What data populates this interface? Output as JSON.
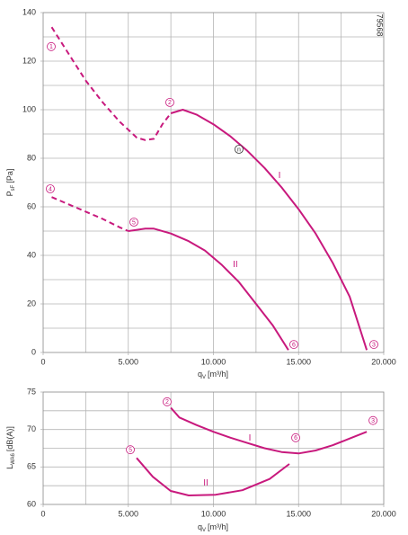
{
  "chart_data": [
    {
      "type": "line",
      "ylabel": {
        "main": "P",
        "sub": "sF",
        "unit": "[Pa]"
      },
      "xlabel": {
        "main": "q",
        "sub": "V",
        "unit": "[m³/h]"
      },
      "code": "79568",
      "xlim": [
        0,
        20000
      ],
      "ylim": [
        0,
        140
      ],
      "xticks": [
        0,
        {
          "value": 5000,
          "label": "5.000"
        },
        {
          "value": 10000,
          "label": "10.000"
        },
        {
          "value": 15000,
          "label": "15.000"
        },
        {
          "value": 20000,
          "label": "20.000"
        }
      ],
      "yticks": [
        0,
        20,
        40,
        60,
        80,
        100,
        120,
        140
      ],
      "xgrid": [
        2500,
        5000,
        7500,
        10000,
        12500,
        15000,
        17500
      ],
      "ygrid": [
        10,
        20,
        30,
        40,
        50,
        60,
        70,
        80,
        90,
        100,
        110,
        120,
        130
      ],
      "series": [
        {
          "color": "#c8197d",
          "dash": true,
          "x": [
            500,
            1500,
            2500,
            3500,
            4500,
            5500,
            6000,
            6500,
            7000,
            7500
          ],
          "values": [
            134,
            123,
            112,
            103,
            95,
            88.5,
            87.5,
            88,
            94,
            98.5
          ]
        },
        {
          "color": "#c8197d",
          "dash": false,
          "x": [
            7500,
            8200,
            9000,
            10000,
            11000,
            12000,
            13000,
            14000,
            15000,
            16000,
            17000,
            18000,
            19000
          ],
          "values": [
            98.5,
            100,
            98,
            94,
            89,
            83,
            76,
            68,
            59,
            49,
            37,
            23,
            1
          ]
        },
        {
          "color": "#c8197d",
          "dash": true,
          "x": [
            500,
            1500,
            2500,
            3500,
            4500,
            5000
          ],
          "values": [
            64,
            61,
            58,
            55,
            51.5,
            50
          ]
        },
        {
          "color": "#c8197d",
          "dash": false,
          "x": [
            5000,
            6000,
            6500,
            7500,
            8500,
            9500,
            10500,
            11500,
            12500,
            13500,
            14400
          ],
          "values": [
            50,
            51,
            51,
            49,
            46,
            42,
            36,
            29,
            20,
            11,
            1
          ]
        }
      ],
      "annotations": [
        {
          "text": "1",
          "circled": true,
          "x": 475,
          "y": 126
        },
        {
          "text": "2",
          "circled": true,
          "x": 7440,
          "y": 103
        },
        {
          "text": "3",
          "circled": true,
          "x": 19420,
          "y": 3.3
        },
        {
          "text": "4",
          "circled": true,
          "x": 420,
          "y": 67.4
        },
        {
          "text": "5",
          "circled": true,
          "x": 5330,
          "y": 53.7
        },
        {
          "text": "6",
          "circled": true,
          "x": 14720,
          "y": 3.3
        },
        {
          "text": "n",
          "circled": true,
          "x": 11500,
          "y": 83.7
        },
        {
          "text": "I",
          "circled": false,
          "x": 13880,
          "y": 73
        },
        {
          "text": "II",
          "circled": false,
          "x": 11290,
          "y": 36.3
        }
      ]
    },
    {
      "type": "line",
      "ylabel": {
        "main": "L",
        "sub": "WA6",
        "unit": "[dB(A)]"
      },
      "xlabel": {
        "main": "q",
        "sub": "V",
        "unit": "[m³/h]"
      },
      "xlim": [
        0,
        20000
      ],
      "ylim": [
        60,
        75
      ],
      "xticks": [
        0,
        {
          "value": 5000,
          "label": "5.000"
        },
        {
          "value": 10000,
          "label": "10.000"
        },
        {
          "value": 15000,
          "label": "15.000"
        },
        {
          "value": 20000,
          "label": "20.000"
        }
      ],
      "yticks": [
        60,
        65,
        70,
        75
      ],
      "xgrid": [
        2500,
        5000,
        7500,
        10000,
        12500,
        15000,
        17500
      ],
      "ygrid": [
        62.5,
        65,
        67.5,
        70,
        72.5
      ],
      "series": [
        {
          "color": "#c8197d",
          "dash": false,
          "x": [
            7500,
            8000,
            9000,
            10000,
            11000,
            12000,
            13000,
            14000,
            15000,
            16000,
            17000,
            18000,
            19000
          ],
          "values": [
            72.9,
            71.6,
            70.6,
            69.7,
            68.9,
            68.2,
            67.5,
            67,
            66.8,
            67.2,
            67.9,
            68.8,
            69.7
          ]
        },
        {
          "color": "#c8197d",
          "dash": false,
          "x": [
            5490,
            6440,
            7490,
            8550,
            10130,
            11700,
            13300,
            14460
          ],
          "values": [
            66.2,
            63.7,
            61.8,
            61.2,
            61.3,
            61.9,
            63.4,
            65.4
          ]
        }
      ],
      "annotations": [
        {
          "text": "2",
          "circled": true,
          "x": 7280,
          "y": 73.7
        },
        {
          "text": "3",
          "circled": true,
          "x": 19370,
          "y": 71.2
        },
        {
          "text": "5",
          "circled": true,
          "x": 5120,
          "y": 67.3
        },
        {
          "text": "6",
          "circled": true,
          "x": 14830,
          "y": 68.9
        },
        {
          "text": "I",
          "circled": false,
          "x": 12140,
          "y": 68.9
        },
        {
          "text": "II",
          "circled": false,
          "x": 9550,
          "y": 62.9
        }
      ]
    }
  ]
}
